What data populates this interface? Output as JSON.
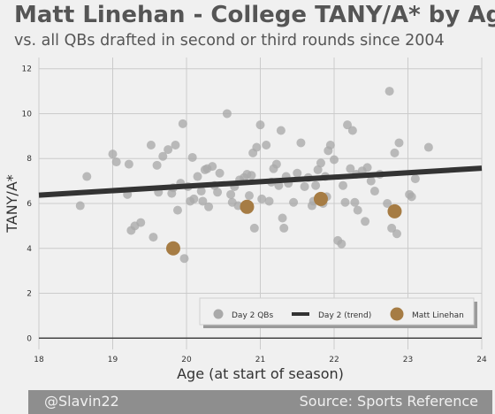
{
  "title": "Matt Linehan - College TANY/A* by Age",
  "subtitle": "vs. all QBs drafted in second or third rounds since 2004",
  "footer": {
    "left": "@Slavin22",
    "right": "Source: Sports Reference"
  },
  "colors": {
    "background": "#f0f0f0",
    "grid": "#cbcbcb",
    "day2_points": "#a9a9a9",
    "trend": "#333333",
    "linehan": "#a67c44",
    "footer_bg": "#8e8e8e"
  },
  "chart_data": {
    "type": "scatter",
    "xlabel": "Age (at start of season)",
    "ylabel": "TANY/A*",
    "xlim": [
      18,
      24
    ],
    "ylim": [
      -0.5,
      12.5
    ],
    "xticks": [
      "18",
      "19",
      "20",
      "21",
      "22",
      "23",
      "24"
    ],
    "yticks": [
      "0",
      "2",
      "4",
      "6",
      "8",
      "10",
      "12"
    ],
    "grid": true,
    "legend": {
      "placement": "bottom-right",
      "entries": [
        "Day 2 QBs",
        "Day 2 (trend)",
        "Matt Linehan"
      ]
    },
    "series": [
      {
        "name": "Day 2 QBs",
        "kind": "scatter",
        "points": [
          [
            18.56,
            5.9
          ],
          [
            18.65,
            7.2
          ],
          [
            19.0,
            8.2
          ],
          [
            19.05,
            7.85
          ],
          [
            19.2,
            6.4
          ],
          [
            19.22,
            7.75
          ],
          [
            19.25,
            4.8
          ],
          [
            19.3,
            5.0
          ],
          [
            19.38,
            5.15
          ],
          [
            19.52,
            8.6
          ],
          [
            19.55,
            4.5
          ],
          [
            19.6,
            7.7
          ],
          [
            19.62,
            6.5
          ],
          [
            19.68,
            8.1
          ],
          [
            19.75,
            8.4
          ],
          [
            19.8,
            6.45
          ],
          [
            19.82,
            6.7
          ],
          [
            19.85,
            8.6
          ],
          [
            19.88,
            5.7
          ],
          [
            19.92,
            6.9
          ],
          [
            19.95,
            9.55
          ],
          [
            19.97,
            3.55
          ],
          [
            20.02,
            6.75
          ],
          [
            20.05,
            6.1
          ],
          [
            20.08,
            8.05
          ],
          [
            20.1,
            6.2
          ],
          [
            20.15,
            7.2
          ],
          [
            20.2,
            6.55
          ],
          [
            20.22,
            6.1
          ],
          [
            20.25,
            7.5
          ],
          [
            20.28,
            7.55
          ],
          [
            20.3,
            5.85
          ],
          [
            20.35,
            7.65
          ],
          [
            20.38,
            6.8
          ],
          [
            20.42,
            6.5
          ],
          [
            20.45,
            7.35
          ],
          [
            20.55,
            10.0
          ],
          [
            20.6,
            6.4
          ],
          [
            20.62,
            6.05
          ],
          [
            20.65,
            6.75
          ],
          [
            20.7,
            5.9
          ],
          [
            20.72,
            7.05
          ],
          [
            20.78,
            7.15
          ],
          [
            20.82,
            7.3
          ],
          [
            20.85,
            6.35
          ],
          [
            20.88,
            7.25
          ],
          [
            20.9,
            8.25
          ],
          [
            20.92,
            4.9
          ],
          [
            20.95,
            8.5
          ],
          [
            21.0,
            9.5
          ],
          [
            21.02,
            6.2
          ],
          [
            21.08,
            8.6
          ],
          [
            21.12,
            6.1
          ],
          [
            21.15,
            6.95
          ],
          [
            21.18,
            7.55
          ],
          [
            21.22,
            7.75
          ],
          [
            21.25,
            6.8
          ],
          [
            21.28,
            9.25
          ],
          [
            21.3,
            5.35
          ],
          [
            21.32,
            4.9
          ],
          [
            21.35,
            7.2
          ],
          [
            21.38,
            6.9
          ],
          [
            21.45,
            6.05
          ],
          [
            21.5,
            7.35
          ],
          [
            21.55,
            8.7
          ],
          [
            21.6,
            6.75
          ],
          [
            21.65,
            7.15
          ],
          [
            21.7,
            5.9
          ],
          [
            21.72,
            6.1
          ],
          [
            21.75,
            6.8
          ],
          [
            21.78,
            7.5
          ],
          [
            21.82,
            7.8
          ],
          [
            21.85,
            6.0
          ],
          [
            21.88,
            7.2
          ],
          [
            21.9,
            6.3
          ],
          [
            21.92,
            8.35
          ],
          [
            21.95,
            8.6
          ],
          [
            22.0,
            7.95
          ],
          [
            22.05,
            4.35
          ],
          [
            22.1,
            4.2
          ],
          [
            22.12,
            6.8
          ],
          [
            22.15,
            6.05
          ],
          [
            22.18,
            9.5
          ],
          [
            22.22,
            7.55
          ],
          [
            22.25,
            9.25
          ],
          [
            22.28,
            6.05
          ],
          [
            22.3,
            7.3
          ],
          [
            22.32,
            5.7
          ],
          [
            22.38,
            7.45
          ],
          [
            22.42,
            5.2
          ],
          [
            22.45,
            7.6
          ],
          [
            22.5,
            7.0
          ],
          [
            22.55,
            6.55
          ],
          [
            22.62,
            7.3
          ],
          [
            22.72,
            6.0
          ],
          [
            22.75,
            11.0
          ],
          [
            22.78,
            4.9
          ],
          [
            22.82,
            8.25
          ],
          [
            22.85,
            4.65
          ],
          [
            22.88,
            8.7
          ],
          [
            23.02,
            6.4
          ],
          [
            23.05,
            6.3
          ],
          [
            23.1,
            7.1
          ],
          [
            23.28,
            8.5
          ]
        ]
      },
      {
        "name": "Day 2 (trend)",
        "kind": "line",
        "points": [
          [
            18,
            6.37
          ],
          [
            24,
            7.57
          ]
        ]
      },
      {
        "name": "Matt Linehan",
        "kind": "scatter",
        "points": [
          [
            19.82,
            4.0
          ],
          [
            20.82,
            5.85
          ],
          [
            21.82,
            6.2
          ],
          [
            22.82,
            5.65
          ]
        ]
      }
    ]
  }
}
